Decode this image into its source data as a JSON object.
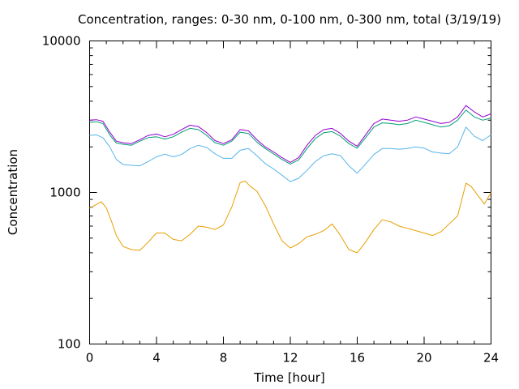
{
  "chart_data": {
    "type": "line",
    "title": "Concentration, ranges: 0-30 nm, 0-100 nm, 0-300 nm, total (3/19/19)",
    "xlabel": "Time [hour]",
    "ylabel": "Concentration",
    "xlim": [
      0,
      24
    ],
    "ylim": [
      100,
      10000
    ],
    "yscale": "log",
    "grid": false,
    "xticks": [
      0,
      4,
      8,
      12,
      16,
      20,
      24
    ],
    "xtick_labels": [
      "0",
      "4",
      "8",
      "12",
      "16",
      "20",
      "24"
    ],
    "yticks": [
      100,
      1000,
      10000
    ],
    "ytick_labels": [
      "100",
      "1000",
      "10000"
    ],
    "series": [
      {
        "color": "#e69f00",
        "x": [
          0,
          0.3,
          0.7,
          1.0,
          1.3,
          1.6,
          2.0,
          2.5,
          3.0,
          3.5,
          4.0,
          4.5,
          5.0,
          5.5,
          6.0,
          6.5,
          7.0,
          7.5,
          8.0,
          8.5,
          9.0,
          9.3,
          9.6,
          10.0,
          10.5,
          11.0,
          11.5,
          12.0,
          12.5,
          13.0,
          13.5,
          14.0,
          14.5,
          15.0,
          15.5,
          16.0,
          16.5,
          17.0,
          17.5,
          18.0,
          18.5,
          19.0,
          19.5,
          20.0,
          20.5,
          21.0,
          21.5,
          22.0,
          22.5,
          22.8,
          23.2,
          23.6,
          24.0
        ],
        "values": [
          790,
          820,
          870,
          790,
          650,
          520,
          440,
          420,
          415,
          470,
          540,
          540,
          490,
          480,
          530,
          600,
          590,
          570,
          610,
          800,
          1160,
          1190,
          1100,
          1020,
          820,
          620,
          480,
          430,
          460,
          510,
          530,
          560,
          620,
          520,
          420,
          400,
          470,
          570,
          660,
          640,
          600,
          580,
          560,
          540,
          520,
          550,
          620,
          700,
          1150,
          1100,
          960,
          840,
          1000
        ]
      },
      {
        "color": "#56b4e9",
        "x": [
          0,
          0.4,
          0.8,
          1.2,
          1.6,
          2.0,
          2.5,
          3.0,
          3.5,
          4.0,
          4.5,
          5.0,
          5.5,
          6.0,
          6.5,
          7.0,
          7.5,
          8.0,
          8.5,
          9.0,
          9.5,
          10.0,
          10.5,
          11.0,
          11.5,
          12.0,
          12.5,
          13.0,
          13.5,
          14.0,
          14.5,
          15.0,
          15.5,
          16.0,
          16.5,
          17.0,
          17.5,
          18.0,
          18.5,
          19.0,
          19.5,
          20.0,
          20.5,
          21.0,
          21.5,
          22.0,
          22.5,
          23.0,
          23.5,
          24.0
        ],
        "values": [
          2380,
          2400,
          2300,
          2000,
          1650,
          1530,
          1510,
          1500,
          1600,
          1720,
          1790,
          1720,
          1780,
          1950,
          2050,
          1980,
          1800,
          1680,
          1680,
          1900,
          1950,
          1750,
          1550,
          1430,
          1300,
          1180,
          1240,
          1400,
          1600,
          1750,
          1800,
          1750,
          1500,
          1340,
          1540,
          1780,
          1950,
          1950,
          1930,
          1950,
          2000,
          1960,
          1850,
          1820,
          1800,
          2000,
          2700,
          2350,
          2200,
          2400
        ]
      },
      {
        "color": "#009e73",
        "x": [
          0,
          0.4,
          0.8,
          1.2,
          1.6,
          2.0,
          2.5,
          3.0,
          3.5,
          4.0,
          4.5,
          5.0,
          5.5,
          6.0,
          6.5,
          7.0,
          7.5,
          8.0,
          8.5,
          9.0,
          9.5,
          10.0,
          10.5,
          11.0,
          11.5,
          12.0,
          12.5,
          13.0,
          13.5,
          14.0,
          14.5,
          15.0,
          15.5,
          16.0,
          16.5,
          17.0,
          17.5,
          18.0,
          18.5,
          19.0,
          19.5,
          20.0,
          20.5,
          21.0,
          21.5,
          22.0,
          22.5,
          23.0,
          23.5,
          24.0
        ],
        "values": [
          2900,
          2930,
          2850,
          2400,
          2120,
          2080,
          2050,
          2180,
          2300,
          2330,
          2250,
          2330,
          2500,
          2650,
          2600,
          2380,
          2130,
          2050,
          2180,
          2500,
          2450,
          2150,
          1950,
          1800,
          1650,
          1540,
          1640,
          1950,
          2270,
          2480,
          2520,
          2350,
          2100,
          1960,
          2300,
          2700,
          2880,
          2850,
          2800,
          2850,
          3000,
          2900,
          2800,
          2700,
          2750,
          3000,
          3500,
          3150,
          3000,
          3100
        ]
      },
      {
        "color": "#9400d3",
        "x": [
          0,
          0.4,
          0.8,
          1.2,
          1.6,
          2.0,
          2.5,
          3.0,
          3.5,
          4.0,
          4.5,
          5.0,
          5.5,
          6.0,
          6.5,
          7.0,
          7.5,
          8.0,
          8.5,
          9.0,
          9.5,
          10.0,
          10.5,
          11.0,
          11.5,
          12.0,
          12.5,
          13.0,
          13.5,
          14.0,
          14.5,
          15.0,
          15.5,
          16.0,
          16.5,
          17.0,
          17.5,
          18.0,
          18.5,
          19.0,
          19.5,
          20.0,
          20.5,
          21.0,
          21.5,
          22.0,
          22.5,
          23.0,
          23.5,
          24.0
        ],
        "values": [
          3000,
          3020,
          2950,
          2500,
          2180,
          2130,
          2100,
          2230,
          2380,
          2430,
          2330,
          2420,
          2600,
          2780,
          2720,
          2480,
          2200,
          2100,
          2230,
          2600,
          2550,
          2230,
          2000,
          1850,
          1700,
          1580,
          1700,
          2050,
          2380,
          2600,
          2650,
          2450,
          2180,
          2020,
          2400,
          2850,
          3050,
          3000,
          2950,
          3000,
          3150,
          3050,
          2950,
          2850,
          2900,
          3150,
          3750,
          3400,
          3150,
          3300
        ]
      }
    ]
  }
}
